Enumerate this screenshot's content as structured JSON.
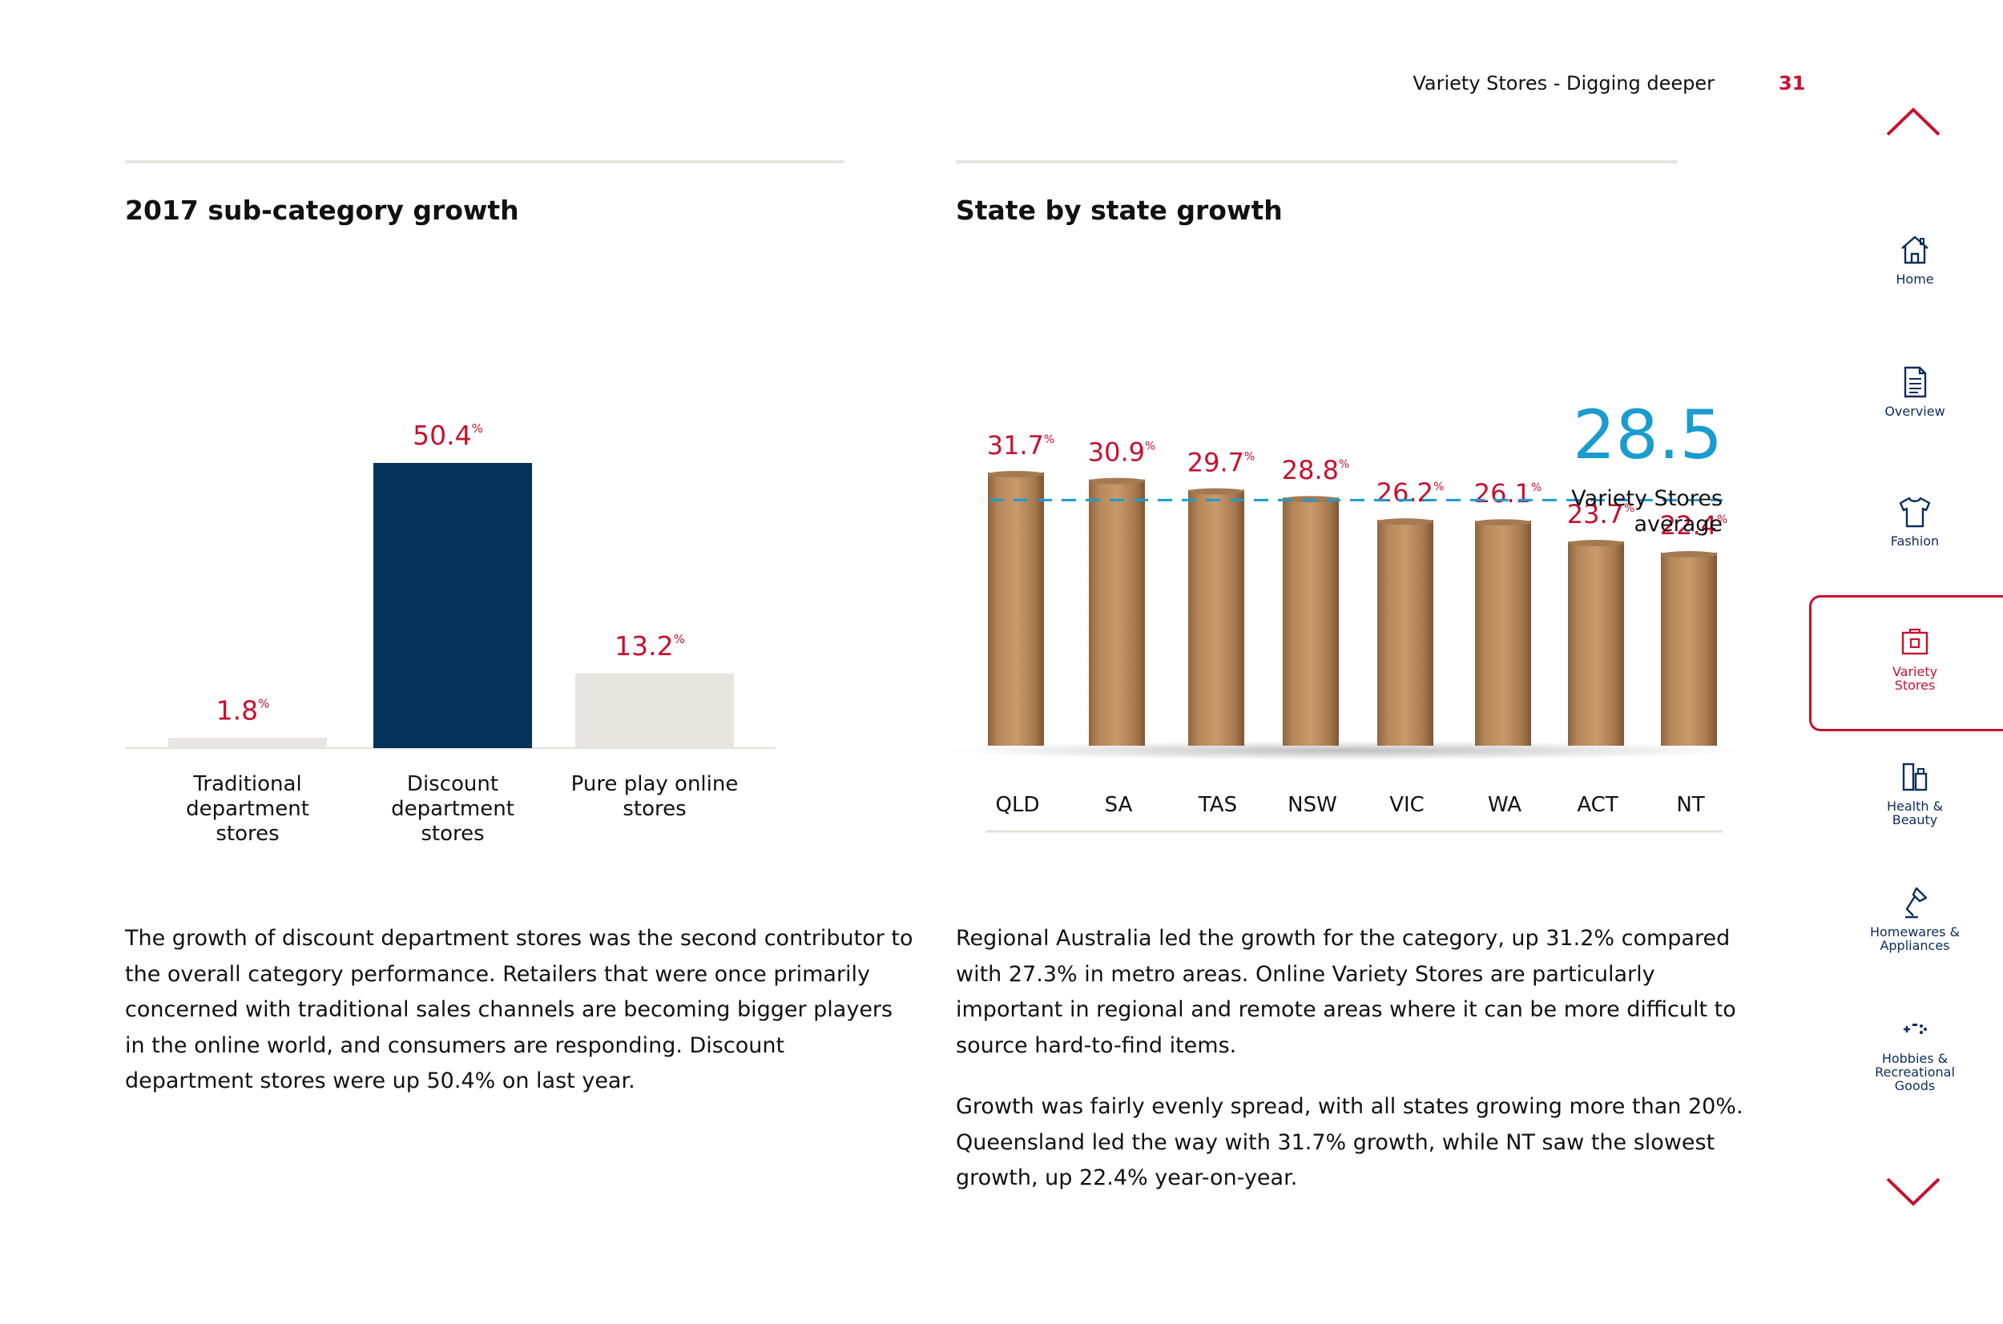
{
  "header": {
    "section": "Variety Stores - Digging deeper",
    "page": "31"
  },
  "left": {
    "title": "2017 sub-category growth",
    "body": "The growth of discount department stores was the second contributor to the overall category performance. Retailers that were once primarily concerned with traditional sales channels are becoming bigger players in the online world, and consumers are responding. Discount department stores were up 50.4% on last year."
  },
  "right": {
    "title": "State by state growth",
    "body_p1": "Regional Australia led the growth for the category, up 31.2% compared with 27.3% in metro areas. Online Variety Stores are particularly important in regional and remote areas where it can be more difficult to source hard-to-find items.",
    "body_p2": "Growth was fairly evenly spread, with all states growing more than 20%. Queensland led the way with 31.7% growth, while NT saw the slowest growth, up 22.4% year-on-year."
  },
  "chart_data": [
    {
      "type": "bar",
      "title": "2017 sub-category growth",
      "categories": [
        "Traditional department stores",
        "Discount department stores",
        "Pure play online stores"
      ],
      "category_lines": [
        [
          "Traditional",
          "department",
          "stores"
        ],
        [
          "Discount",
          "department",
          "stores"
        ],
        [
          "Pure play online",
          "stores"
        ]
      ],
      "values": [
        1.8,
        50.4,
        13.2
      ],
      "value_labels": [
        "1.8",
        "50.4",
        "13.2"
      ],
      "unit": "%",
      "colors": [
        "#e8e4df",
        "#04325a",
        "#e8e4df"
      ],
      "label_color": "#c8102e",
      "ylim": [
        0,
        50.4
      ]
    },
    {
      "type": "bar",
      "title": "State by state growth",
      "categories": [
        "QLD",
        "SA",
        "TAS",
        "NSW",
        "VIC",
        "WA",
        "ACT",
        "NT"
      ],
      "values": [
        31.7,
        30.9,
        29.7,
        28.8,
        26.2,
        26.1,
        23.7,
        22.4
      ],
      "value_labels": [
        "31.7",
        "30.9",
        "29.7",
        "28.8",
        "26.2",
        "26.1",
        "23.7",
        "22.4"
      ],
      "unit": "%",
      "average": {
        "value": 28.5,
        "label": "28.5",
        "unit": "%",
        "caption_line1": "Variety Stores",
        "caption_line2": "average",
        "color": "#1a9cd0"
      },
      "bar_color": "#b98a5e",
      "label_color": "#c8102e",
      "ylim": [
        0,
        31.7
      ]
    }
  ],
  "sidebar": {
    "up_icon": "chevron-up-icon",
    "down_icon": "chevron-down-icon",
    "items": [
      {
        "label": "Home",
        "icon": "home-icon",
        "active": false
      },
      {
        "label": "Overview",
        "icon": "document-icon",
        "active": false
      },
      {
        "label": "Fashion",
        "icon": "tshirt-icon",
        "active": false
      },
      {
        "label": "Variety\nStores",
        "icon": "variety-box-icon",
        "active": true
      },
      {
        "label": "Health &\nBeauty",
        "icon": "bottles-icon",
        "active": false
      },
      {
        "label": "Homewares &\nAppliances",
        "icon": "lamp-icon",
        "active": false
      },
      {
        "label": "Hobbies &\nRecreational\nGoods",
        "icon": "gamepad-icon",
        "active": false
      }
    ],
    "accent": "#c8102e",
    "navy": "#0b2d5a"
  }
}
